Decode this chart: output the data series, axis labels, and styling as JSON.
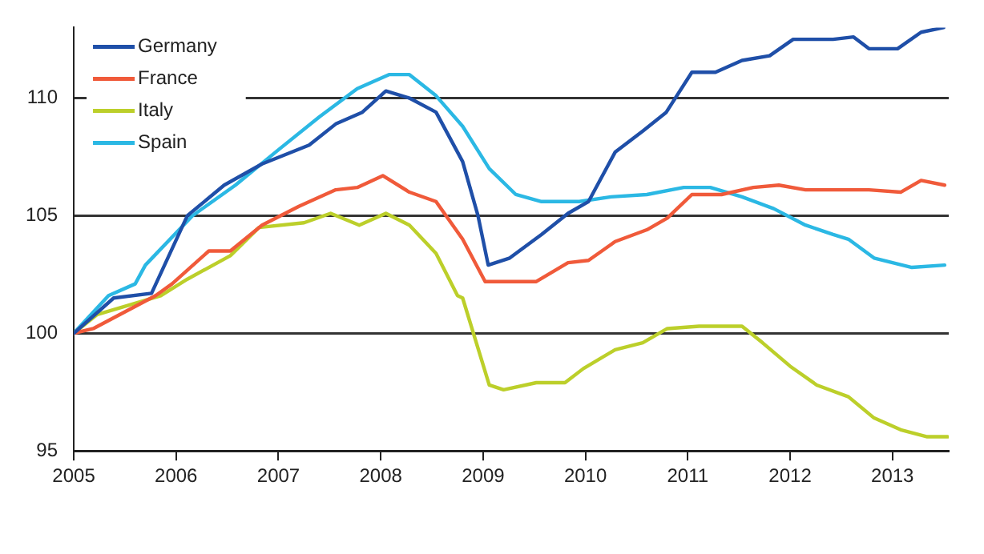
{
  "chart_data": {
    "type": "line",
    "xlim": [
      2005,
      2013.55
    ],
    "xticks": [
      2005,
      2006,
      2007,
      2008,
      2009,
      2010,
      2011,
      2012,
      2013
    ],
    "ylim": [
      95,
      113
    ],
    "yticks": [
      95,
      100,
      105,
      110
    ],
    "grid": "y",
    "line_style": "solid",
    "marker": "none",
    "legend": "top left",
    "series": [
      {
        "name": "Germany",
        "color": "#1f4fa8",
        "x": [
          2005,
          2005.39,
          2005.76,
          2006.11,
          2006.47,
          2006.84,
          2007.3,
          2007.56,
          2007.82,
          2008.05,
          2008.28,
          2008.54,
          2008.8,
          2008.95,
          2009.05,
          2009.26,
          2009.57,
          2009.83,
          2010.03,
          2010.29,
          2010.56,
          2010.79,
          2011.04,
          2011.27,
          2011.53,
          2011.8,
          2012.03,
          2012.42,
          2012.62,
          2012.77,
          2013.05,
          2013.28,
          2013.5
        ],
        "values": [
          100,
          101.5,
          101.7,
          105.0,
          106.3,
          107.2,
          108.0,
          108.9,
          109.4,
          110.3,
          110.0,
          109.4,
          107.3,
          105.0,
          102.9,
          103.2,
          104.2,
          105.1,
          105.6,
          107.7,
          108.6,
          109.4,
          111.1,
          111.1,
          111.6,
          111.8,
          112.5,
          112.5,
          112.6,
          112.1,
          112.1,
          112.8,
          113.0
        ]
      },
      {
        "name": "France",
        "color": "#f05a3a",
        "x": [
          2005,
          2005.19,
          2005.8,
          2005.96,
          2006.32,
          2006.53,
          2006.84,
          2007.2,
          2007.56,
          2007.77,
          2008.02,
          2008.28,
          2008.54,
          2008.8,
          2009.02,
          2009.52,
          2009.83,
          2010.03,
          2010.29,
          2010.6,
          2010.8,
          2011.04,
          2011.33,
          2011.64,
          2011.89,
          2012.15,
          2012.77,
          2013.08,
          2013.28,
          2013.51
        ],
        "values": [
          100,
          100.2,
          101.6,
          102.1,
          103.5,
          103.5,
          104.6,
          105.4,
          106.1,
          106.2,
          106.7,
          106.0,
          105.6,
          104.0,
          102.2,
          102.2,
          103.0,
          103.1,
          103.9,
          104.4,
          104.9,
          105.9,
          105.9,
          106.2,
          106.3,
          106.1,
          106.1,
          106.0,
          106.5,
          106.3
        ]
      },
      {
        "name": "Italy",
        "color": "#bccf2a",
        "x": [
          2005,
          2005.23,
          2005.85,
          2006.11,
          2006.53,
          2006.81,
          2007.25,
          2007.51,
          2007.79,
          2008.05,
          2008.28,
          2008.54,
          2008.75,
          2008.8,
          2009.06,
          2009.2,
          2009.52,
          2009.8,
          2009.98,
          2010.29,
          2010.56,
          2010.8,
          2011.11,
          2011.53,
          2011.73,
          2012.0,
          2012.26,
          2012.57,
          2012.82,
          2013.08,
          2013.34,
          2013.54
        ],
        "values": [
          100,
          100.8,
          101.6,
          102.3,
          103.3,
          104.5,
          104.7,
          105.1,
          104.6,
          105.1,
          104.6,
          103.4,
          101.6,
          101.5,
          97.8,
          97.6,
          97.9,
          97.9,
          98.5,
          99.3,
          99.6,
          100.2,
          100.3,
          100.3,
          99.6,
          98.6,
          97.8,
          97.3,
          96.4,
          95.9,
          95.6,
          95.6
        ]
      },
      {
        "name": "Spain",
        "color": "#2bb8e4",
        "x": [
          2005,
          2005.34,
          2005.6,
          2005.7,
          2006.16,
          2006.58,
          2007.0,
          2007.4,
          2007.77,
          2008.08,
          2008.28,
          2008.54,
          2008.8,
          2009.06,
          2009.32,
          2009.57,
          2009.94,
          2010.25,
          2010.6,
          2010.96,
          2011.22,
          2011.53,
          2011.84,
          2012.15,
          2012.42,
          2012.57,
          2012.82,
          2013.19,
          2013.51
        ],
        "values": [
          100,
          101.6,
          102.1,
          102.9,
          105.0,
          106.3,
          107.8,
          109.2,
          110.4,
          111.0,
          111.0,
          110.1,
          108.8,
          107.0,
          105.9,
          105.6,
          105.6,
          105.8,
          105.9,
          106.2,
          106.2,
          105.8,
          105.3,
          104.6,
          104.2,
          104.0,
          103.2,
          102.8,
          102.9
        ]
      }
    ]
  }
}
